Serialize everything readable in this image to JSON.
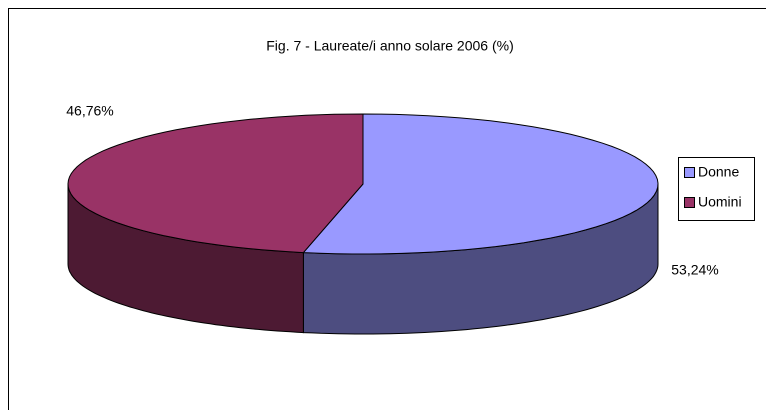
{
  "chart_data": {
    "type": "pie3d",
    "title": "Fig. 7 - Laureate/i anno solare 2006 (%)",
    "categories": [
      "Donne",
      "Uomini"
    ],
    "values": [
      53.24,
      46.76
    ],
    "value_labels": [
      "53,24%",
      "46,76%"
    ],
    "colors": [
      "#9999ff",
      "#993366"
    ],
    "side_colors": [
      "#4d4d80",
      "#4d1a33"
    ],
    "legend": "right"
  }
}
